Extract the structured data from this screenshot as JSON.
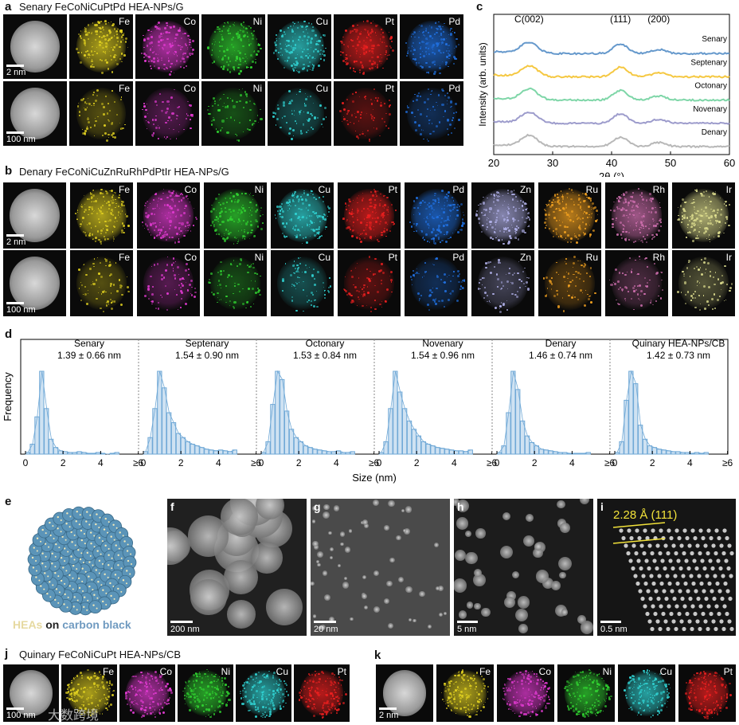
{
  "panels": {
    "a": {
      "label": "a",
      "title": "Senary FeCoNiCuPtPd HEA-NPs/G",
      "elements": [
        {
          "name": "Fe",
          "color": "#e0d020"
        },
        {
          "name": "Co",
          "color": "#e03ad0"
        },
        {
          "name": "Ni",
          "color": "#30d030"
        },
        {
          "name": "Cu",
          "color": "#30d0d0"
        },
        {
          "name": "Pt",
          "color": "#ee2020"
        },
        {
          "name": "Pd",
          "color": "#2070e0"
        }
      ],
      "scale_top": "2 nm",
      "scale_bottom": "100 nm"
    },
    "b": {
      "label": "b",
      "title": "Denary FeCoNiCuZnRuRhPdPtIr HEA-NPs/G",
      "elements": [
        {
          "name": "Fe",
          "color": "#e0d020"
        },
        {
          "name": "Co",
          "color": "#e03ad0"
        },
        {
          "name": "Ni",
          "color": "#30d030"
        },
        {
          "name": "Cu",
          "color": "#30d0d0"
        },
        {
          "name": "Pt",
          "color": "#ee2020"
        },
        {
          "name": "Pd",
          "color": "#2070e0"
        },
        {
          "name": "Zn",
          "color": "#b0b0e8"
        },
        {
          "name": "Ru",
          "color": "#f0a020"
        },
        {
          "name": "Rh",
          "color": "#d070b0"
        },
        {
          "name": "Ir",
          "color": "#e0e090"
        }
      ],
      "scale_top": "2 nm",
      "scale_bottom": "100 nm"
    },
    "c": {
      "label": "c"
    },
    "d": {
      "label": "d"
    },
    "e": {
      "label": "e",
      "caption_a": "HEAs",
      "caption_on": "on",
      "caption_b": "carbon black"
    },
    "f": {
      "label": "f",
      "scale": "200 nm"
    },
    "g": {
      "label": "g",
      "scale": "20 nm"
    },
    "h": {
      "label": "h",
      "scale": "5 nm"
    },
    "i": {
      "label": "i",
      "scale": "0.5 nm",
      "annotation": "2.28 Å (111)"
    },
    "j": {
      "label": "j",
      "title": "Quinary FeCoNiCuPt HEA-NPs/CB",
      "elements": [
        {
          "name": "Fe",
          "color": "#e0d020"
        },
        {
          "name": "Co",
          "color": "#e03ad0"
        },
        {
          "name": "Ni",
          "color": "#30d030"
        },
        {
          "name": "Cu",
          "color": "#30d0d0"
        },
        {
          "name": "Pt",
          "color": "#ee2020"
        }
      ],
      "scale": "100 nm",
      "watermark": "大数跨境"
    },
    "k": {
      "label": "k",
      "elements": [
        {
          "name": "Fe",
          "color": "#e0d020"
        },
        {
          "name": "Co",
          "color": "#e03ad0"
        },
        {
          "name": "Ni",
          "color": "#30d030"
        },
        {
          "name": "Cu",
          "color": "#30d0d0"
        },
        {
          "name": "Pt",
          "color": "#ee2020"
        }
      ],
      "scale": "2 nm"
    }
  },
  "chart_data": [
    {
      "type": "line",
      "panel": "c",
      "xlabel": "2θ (°)",
      "ylabel": "Intensity (arb. units)",
      "xlim": [
        20,
        60
      ],
      "xticks": [
        "20",
        "30",
        "40",
        "50",
        "60"
      ],
      "peak_labels": [
        {
          "text": "C(002)",
          "x": 26
        },
        {
          "text": "(111)",
          "x": 41.5
        },
        {
          "text": "(200)",
          "x": 48
        }
      ],
      "series": [
        {
          "name": "Senary",
          "color": "#6699cc",
          "offset": 4
        },
        {
          "name": "Septenary",
          "color": "#f5c842",
          "offset": 3
        },
        {
          "name": "Octonary",
          "color": "#7fd6a8",
          "offset": 2
        },
        {
          "name": "Novenary",
          "color": "#9d9ccc",
          "offset": 1
        },
        {
          "name": "Denary",
          "color": "#b8b8b8",
          "offset": 0
        }
      ]
    },
    {
      "type": "bar",
      "panel": "d",
      "xlabel": "Size (nm)",
      "ylabel": "Frequency",
      "xticks": [
        "0",
        "2",
        "4",
        "≥6"
      ],
      "bin_width": 0.25,
      "bar_color": "#6fa8d6",
      "subplots": [
        {
          "name": "Senary",
          "stat": "1.39 ± 0.66 nm",
          "counts": [
            2,
            12,
            45,
            100,
            55,
            18,
            8,
            4,
            3,
            2,
            2,
            3,
            2,
            1,
            1,
            2,
            1,
            0,
            1,
            2
          ]
        },
        {
          "name": "Septenary",
          "stat": "1.54 ± 0.90 nm",
          "counts": [
            3,
            20,
            55,
            100,
            80,
            50,
            38,
            25,
            20,
            15,
            12,
            10,
            8,
            6,
            5,
            4,
            5,
            4,
            3,
            5
          ]
        },
        {
          "name": "Octonary",
          "stat": "1.53 ± 0.84 nm",
          "counts": [
            2,
            15,
            60,
            100,
            90,
            52,
            30,
            20,
            15,
            10,
            8,
            6,
            5,
            4,
            3,
            3,
            4,
            2,
            2,
            3
          ]
        },
        {
          "name": "Novenary",
          "stat": "1.54 ± 0.96 nm",
          "counts": [
            2,
            15,
            55,
            100,
            75,
            55,
            40,
            30,
            22,
            15,
            12,
            10,
            8,
            7,
            6,
            5,
            4,
            4,
            3,
            5
          ]
        },
        {
          "name": "Denary",
          "stat": "1.46 ± 0.74 nm",
          "counts": [
            2,
            10,
            50,
            100,
            78,
            40,
            22,
            14,
            10,
            6,
            5,
            4,
            3,
            2,
            2,
            1,
            1,
            1,
            1,
            2
          ]
        },
        {
          "name": "Quinary HEA-NPs/CB",
          "stat": "1.42 ± 0.73 nm",
          "counts": [
            2,
            15,
            65,
            100,
            85,
            35,
            18,
            10,
            8,
            6,
            5,
            4,
            3,
            3,
            2,
            2,
            1,
            2,
            1,
            2
          ]
        }
      ]
    }
  ]
}
